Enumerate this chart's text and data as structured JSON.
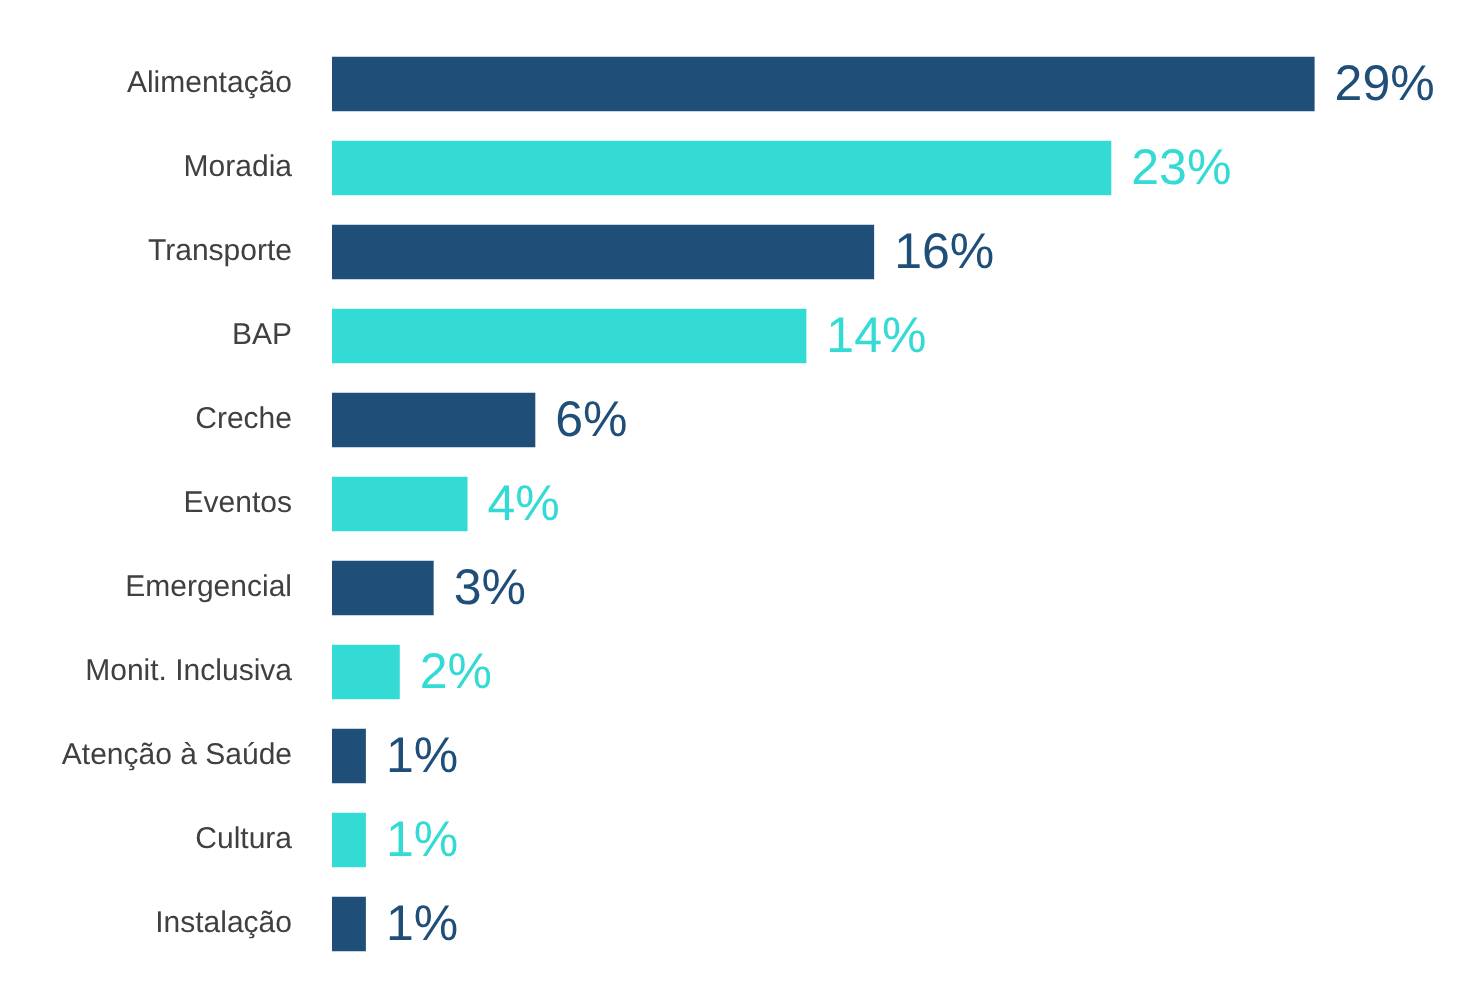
{
  "chart_data": {
    "type": "bar",
    "orientation": "horizontal",
    "categories": [
      "Alimentação",
      "Moradia",
      "Transporte",
      "BAP",
      "Creche",
      "Eventos",
      "Emergencial",
      "Monit. Inclusiva",
      "Atenção à Saúde",
      "Cultura",
      "Instalação"
    ],
    "values": [
      29,
      23,
      16,
      14,
      6,
      4,
      3,
      2,
      1,
      1,
      1
    ],
    "colors": [
      "#1f4e79",
      "#33dbd4",
      "#1f4e79",
      "#33dbd4",
      "#1f4e79",
      "#33dbd4",
      "#1f4e79",
      "#33dbd4",
      "#1f4e79",
      "#33dbd4",
      "#1f4e79"
    ],
    "value_labels": [
      "29%",
      "23%",
      "16%",
      "14%",
      "6%",
      "4%",
      "3%",
      "2%",
      "1%",
      "1%",
      "1%"
    ],
    "legend": false
  }
}
